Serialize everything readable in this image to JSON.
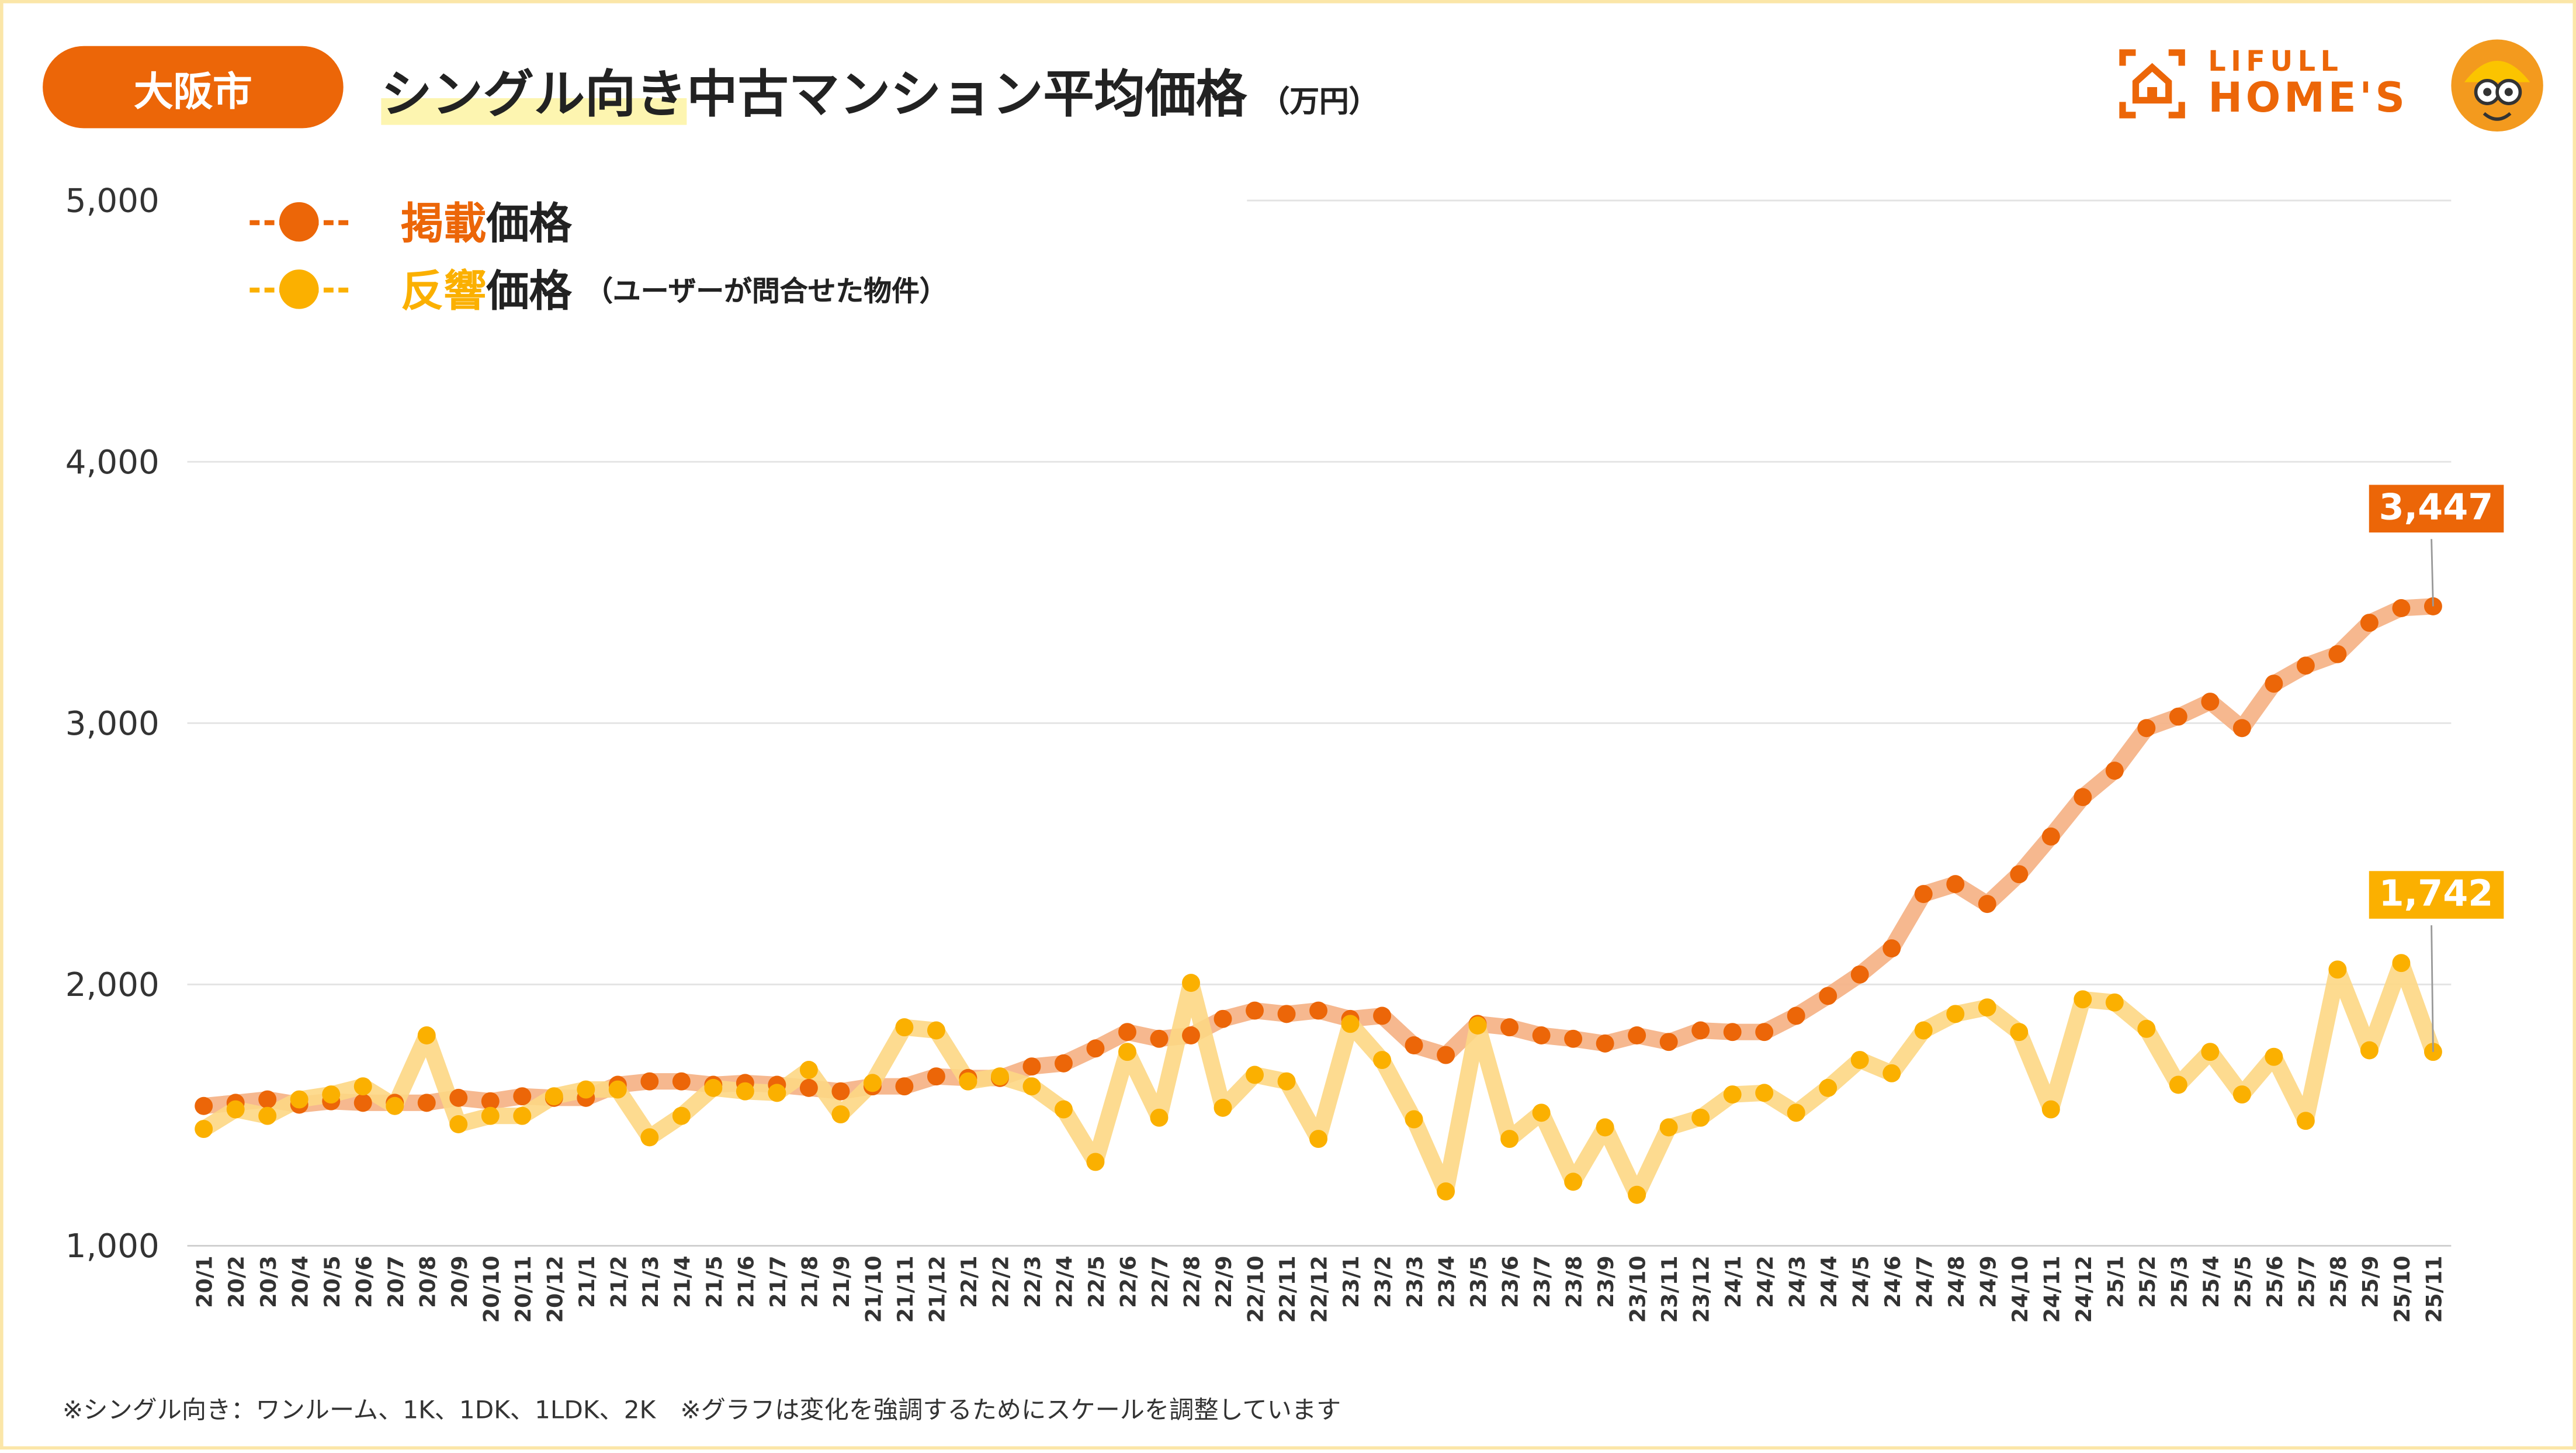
{
  "header": {
    "region": "大阪市",
    "title_highlight": "シングル向き",
    "title_rest": "中古マンション平均価格",
    "unit": "（万円）"
  },
  "logo": {
    "line1": "LIFULL",
    "line2": "HOME'S"
  },
  "legend": [
    {
      "prefix": "掲載",
      "suffix": "価格",
      "note": "",
      "color": "#ec6608"
    },
    {
      "prefix": "反響",
      "suffix": "価格",
      "note": "（ユーザーが問合せた物件）",
      "color": "#fbb000"
    }
  ],
  "footnote": "※シングル向き：ワンルーム、1K、1DK、1LDK、2K　※グラフは変化を強調するためにスケールを調整しています",
  "chart_data": {
    "type": "line",
    "title": "シングル向き中古マンション平均価格（万円）",
    "ylim": [
      1000,
      5000
    ],
    "yticks": [
      "1,000",
      "2,000",
      "3,000",
      "4,000",
      "5,000"
    ],
    "grid": true,
    "legend_position": "top-left",
    "categories": [
      "20/1",
      "20/2",
      "20/3",
      "20/4",
      "20/5",
      "20/6",
      "20/7",
      "20/8",
      "20/9",
      "20/10",
      "20/11",
      "20/12",
      "21/1",
      "21/2",
      "21/3",
      "21/4",
      "21/5",
      "21/6",
      "21/7",
      "21/8",
      "21/9",
      "21/10",
      "21/11",
      "21/12",
      "22/1",
      "22/2",
      "22/3",
      "22/4",
      "22/5",
      "22/6",
      "22/7",
      "22/8",
      "22/9",
      "22/10",
      "22/11",
      "22/12",
      "23/1",
      "23/2",
      "23/3",
      "23/4",
      "23/5",
      "23/6",
      "23/7",
      "23/8",
      "23/9",
      "23/10",
      "23/11",
      "23/12",
      "24/1",
      "24/2",
      "24/3",
      "24/4",
      "24/5",
      "24/6",
      "24/7",
      "24/8",
      "24/9",
      "24/10",
      "24/11",
      "24/12",
      "25/1",
      "25/2",
      "25/3",
      "25/4",
      "25/5",
      "25/6",
      "25/7",
      "25/8",
      "25/9",
      "25/10",
      "25/11"
    ],
    "series": [
      {
        "name": "掲載価格",
        "color": "#ec6608",
        "line_color": "#f5b083",
        "last_label": "3,447",
        "values": [
          1535,
          1547,
          1560,
          1540,
          1553,
          1547,
          1547,
          1547,
          1566,
          1553,
          1572,
          1566,
          1566,
          1616,
          1629,
          1629,
          1616,
          1623,
          1616,
          1604,
          1591,
          1610,
          1610,
          1648,
          1642,
          1642,
          1686,
          1698,
          1755,
          1818,
          1792,
          1805,
          1868,
          1900,
          1887,
          1900,
          1868,
          1880,
          1767,
          1730,
          1849,
          1836,
          1805,
          1792,
          1774,
          1805,
          1780,
          1824,
          1818,
          1818,
          1880,
          1956,
          2038,
          2138,
          2346,
          2384,
          2308,
          2422,
          2566,
          2717,
          2818,
          2981,
          3025,
          3082,
          2981,
          3151,
          3220,
          3264,
          3384,
          3440,
          3447
        ]
      },
      {
        "name": "反響価格",
        "color": "#fbb000",
        "line_color": "#fdd784",
        "last_label": "1,742",
        "values": [
          1447,
          1522,
          1497,
          1560,
          1579,
          1610,
          1535,
          1805,
          1465,
          1497,
          1497,
          1572,
          1598,
          1598,
          1415,
          1497,
          1604,
          1591,
          1585,
          1673,
          1503,
          1623,
          1836,
          1824,
          1629,
          1648,
          1610,
          1522,
          1321,
          1742,
          1490,
          2006,
          1528,
          1654,
          1629,
          1409,
          1849,
          1711,
          1484,
          1208,
          1843,
          1409,
          1509,
          1245,
          1453,
          1195,
          1453,
          1490,
          1579,
          1585,
          1509,
          1604,
          1711,
          1660,
          1824,
          1887,
          1912,
          1818,
          1522,
          1943,
          1931,
          1830,
          1616,
          1742,
          1579,
          1723,
          1478,
          2057,
          1748,
          2082,
          1742
        ]
      }
    ]
  }
}
